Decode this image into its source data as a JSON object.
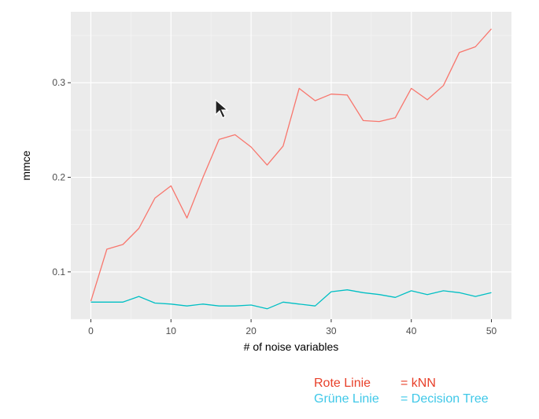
{
  "chart_data": {
    "type": "line",
    "xlabel": "# of noise variables",
    "ylabel": "mmce",
    "xlim": [
      -2.5,
      52.5
    ],
    "ylim": [
      0.05,
      0.375
    ],
    "x_ticks": [
      0,
      10,
      20,
      30,
      40,
      50
    ],
    "y_ticks": [
      0.1,
      0.2,
      0.3
    ],
    "x_tick_labels": [
      "0",
      "10",
      "20",
      "30",
      "40",
      "50"
    ],
    "y_tick_labels": [
      "0.1",
      "0.2",
      "0.3"
    ],
    "grid": true,
    "background": "#ebebeb",
    "x": [
      0,
      2,
      4,
      6,
      8,
      10,
      12,
      14,
      16,
      18,
      20,
      22,
      24,
      26,
      28,
      30,
      32,
      34,
      36,
      38,
      40,
      42,
      44,
      46,
      48,
      50
    ],
    "series": [
      {
        "color": "#F8766D",
        "values": [
          0.069,
          0.124,
          0.129,
          0.146,
          0.178,
          0.191,
          0.157,
          0.2,
          0.24,
          0.245,
          0.232,
          0.213,
          0.233,
          0.294,
          0.281,
          0.288,
          0.287,
          0.26,
          0.259,
          0.263,
          0.294,
          0.282,
          0.297,
          0.332,
          0.338,
          0.357
        ]
      },
      {
        "color": "#00BFC4",
        "values": [
          0.068,
          0.068,
          0.068,
          0.074,
          0.067,
          0.066,
          0.064,
          0.066,
          0.064,
          0.064,
          0.065,
          0.061,
          0.068,
          0.066,
          0.064,
          0.079,
          0.081,
          0.078,
          0.076,
          0.073,
          0.08,
          0.076,
          0.08,
          0.078,
          0.074,
          0.078
        ]
      }
    ]
  },
  "legend": [
    {
      "label": "Rote Linie",
      "desc": "= kNN",
      "color": "#e8402a"
    },
    {
      "label": "Grüne Linie",
      "desc": "= Decision Tree",
      "color": "#3fc8e8"
    }
  ]
}
